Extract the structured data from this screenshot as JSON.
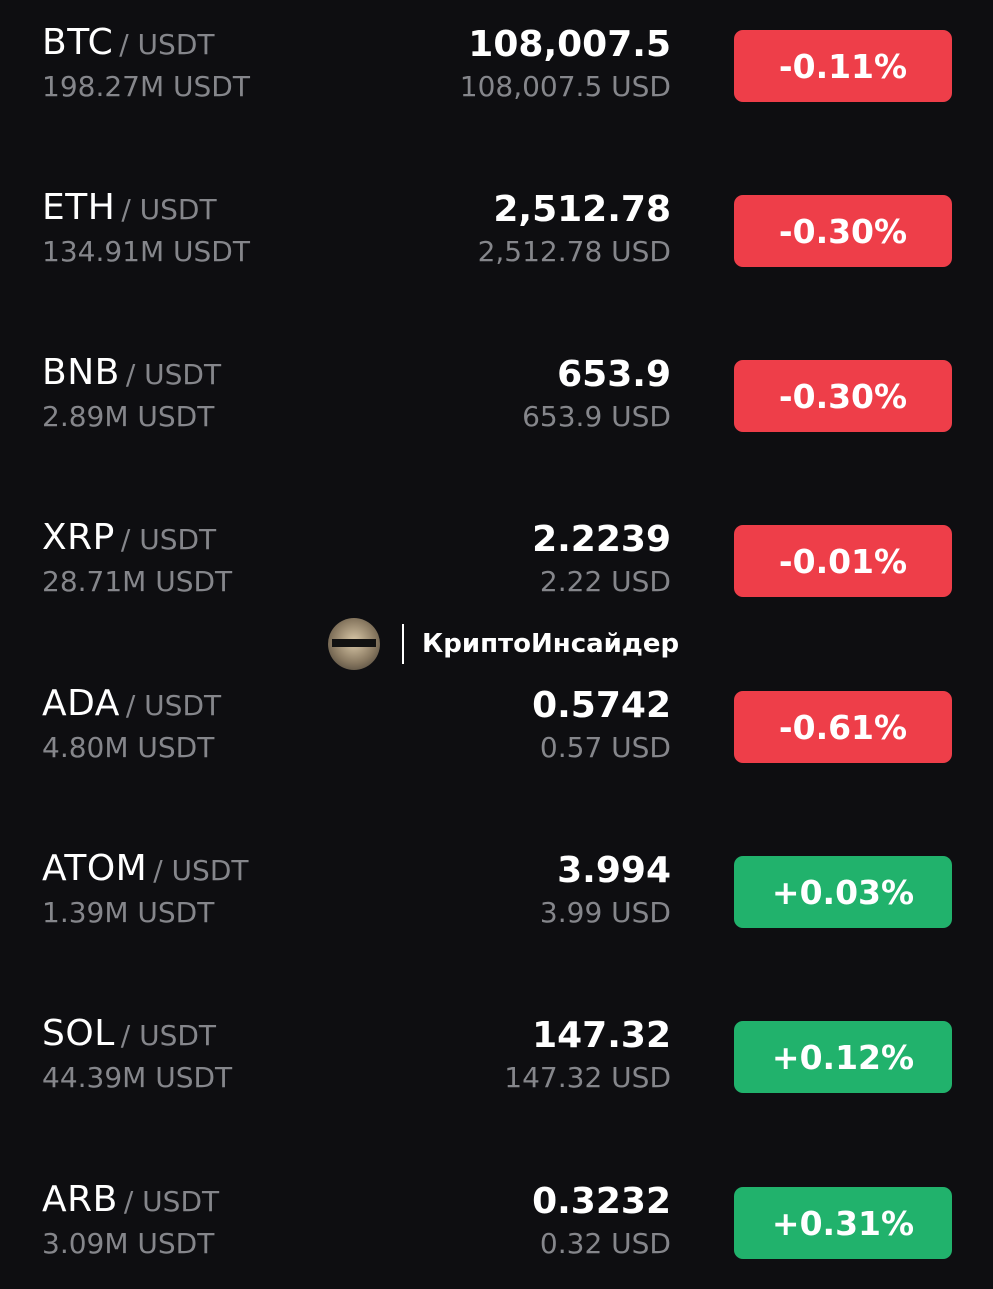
{
  "rows": [
    {
      "symbol": "BTC",
      "quote": "/ USDT",
      "volume": "198.27M USDT",
      "price": "108,007.5",
      "price_usd": "108,007.5 USD",
      "change": "-0.11%",
      "direction": "neg"
    },
    {
      "symbol": "ETH",
      "quote": "/ USDT",
      "volume": "134.91M USDT",
      "price": "2,512.78",
      "price_usd": "2,512.78 USD",
      "change": "-0.30%",
      "direction": "neg"
    },
    {
      "symbol": "BNB",
      "quote": "/ USDT",
      "volume": "2.89M USDT",
      "price": "653.9",
      "price_usd": "653.9 USD",
      "change": "-0.30%",
      "direction": "neg"
    },
    {
      "symbol": "XRP",
      "quote": "/ USDT",
      "volume": "28.71M USDT",
      "price": "2.2239",
      "price_usd": "2.22 USD",
      "change": "-0.01%",
      "direction": "neg"
    },
    {
      "symbol": "ADA",
      "quote": "/ USDT",
      "volume": "4.80M USDT",
      "price": "0.5742",
      "price_usd": "0.57 USD",
      "change": "-0.61%",
      "direction": "neg"
    },
    {
      "symbol": "ATOM",
      "quote": "/ USDT",
      "volume": "1.39M USDT",
      "price": "3.994",
      "price_usd": "3.99 USD",
      "change": "+0.03%",
      "direction": "pos"
    },
    {
      "symbol": "SOL",
      "quote": "/ USDT",
      "volume": "44.39M USDT",
      "price": "147.32",
      "price_usd": "147.32 USD",
      "change": "+0.12%",
      "direction": "pos"
    },
    {
      "symbol": "ARB",
      "quote": "/ USDT",
      "volume": "3.09M USDT",
      "price": "0.3232",
      "price_usd": "0.32 USD",
      "change": "+0.31%",
      "direction": "pos"
    }
  ],
  "watermark": {
    "text": "КриптоИнсайдер",
    "icon": "avatar-icon"
  },
  "colors": {
    "background": "#0e0e11",
    "negative": "#ee3e49",
    "positive": "#21b26c",
    "muted_text": "#85868b"
  }
}
